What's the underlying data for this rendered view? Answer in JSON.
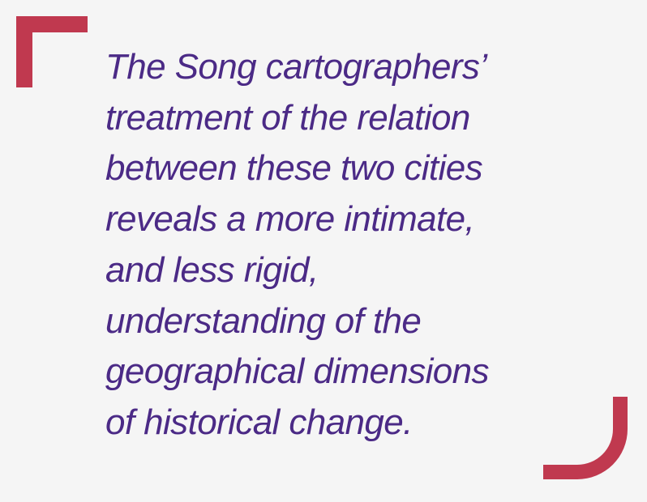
{
  "quote": {
    "lines": [
      "The Song cartographers’",
      "treatment of the relation",
      "between these two cities",
      "reveals a more intimate,",
      "and less rigid,",
      "understanding of the",
      "geographical dimensions",
      "of historical change."
    ]
  },
  "colors": {
    "background": "#f5f5f5",
    "text": "#4b2a86",
    "accent": "#c0394f"
  }
}
